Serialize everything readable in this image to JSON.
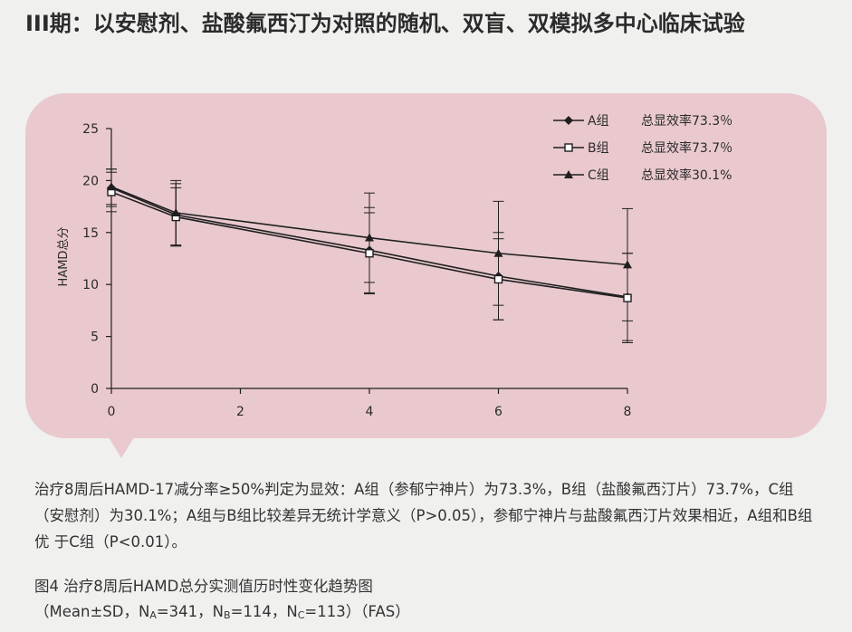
{
  "page": {
    "title": "III期：以安慰剂、盐酸氟西汀为对照的随机、双盲、双模拟多中心临床试验",
    "description": "治疗8周后HAMD-17减分率≥50%判定为显效：A组（参郁宁神片）为73.3%，B组（盐酸氟西汀片）73.7%，C组（安慰剂）为30.1%；A组与B组比较差异无统计学意义（P>0.05），参郁宁神片与盐酸氟西汀片效果相近，A组和B组优 于C组（P<0.01）。",
    "caption_line1": "图4  治疗8周后HAMD总分实测值历时性变化趋势图",
    "caption_line2": {
      "prefix": "（Mean±SD，N",
      "sub_a": "A",
      "eq_a": "=341，N",
      "sub_b": "B",
      "eq_b": "=114，N",
      "sub_c": "C",
      "suffix": "=113）（FAS）"
    }
  },
  "chart_data": {
    "type": "line",
    "ylabel": "HAMD总分",
    "xlabel": "",
    "xlim": [
      0,
      8
    ],
    "ylim": [
      0,
      25
    ],
    "x_ticks": [
      "0",
      "2",
      "4",
      "6",
      "8"
    ],
    "y_ticks": [
      "0",
      "5",
      "10",
      "15",
      "20",
      "25"
    ],
    "grid": false,
    "legend_position": "top-right",
    "x": [
      0,
      1,
      4,
      6,
      8
    ],
    "series": [
      {
        "name": "A组",
        "marker": "diamond-filled",
        "annotation": "总显效率73.3％",
        "values": [
          19.3,
          16.7,
          13.3,
          10.8,
          8.8
        ],
        "sd": [
          1.8,
          3.0,
          4.1,
          4.2,
          4.2
        ]
      },
      {
        "name": "B组",
        "marker": "square-open",
        "annotation": "总显效率73.7％",
        "values": [
          18.9,
          16.5,
          13.0,
          10.5,
          8.7
        ],
        "sd": [
          1.9,
          2.8,
          3.9,
          3.9,
          4.3
        ]
      },
      {
        "name": "C组",
        "marker": "triangle-filled",
        "annotation": "总显效率30.1%",
        "values": [
          19.4,
          16.9,
          14.5,
          13.0,
          11.9
        ],
        "sd": [
          1.7,
          3.1,
          4.3,
          5.0,
          5.4
        ]
      }
    ]
  }
}
